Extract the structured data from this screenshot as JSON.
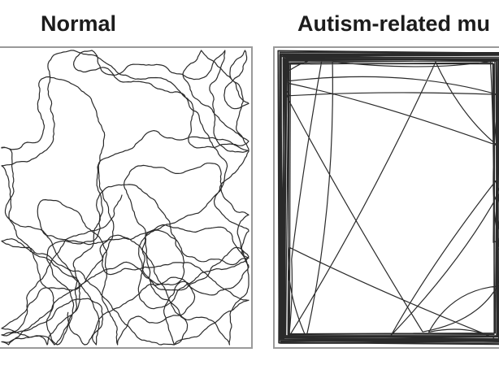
{
  "panels": {
    "left": {
      "label": "Normal"
    },
    "right": {
      "label": "Autism-related mu"
    }
  },
  "colors": {
    "background": "#ffffff",
    "label": "#1c1c1c",
    "trace": "#2a2a2a",
    "arena_border": "#9a9a9a"
  }
}
